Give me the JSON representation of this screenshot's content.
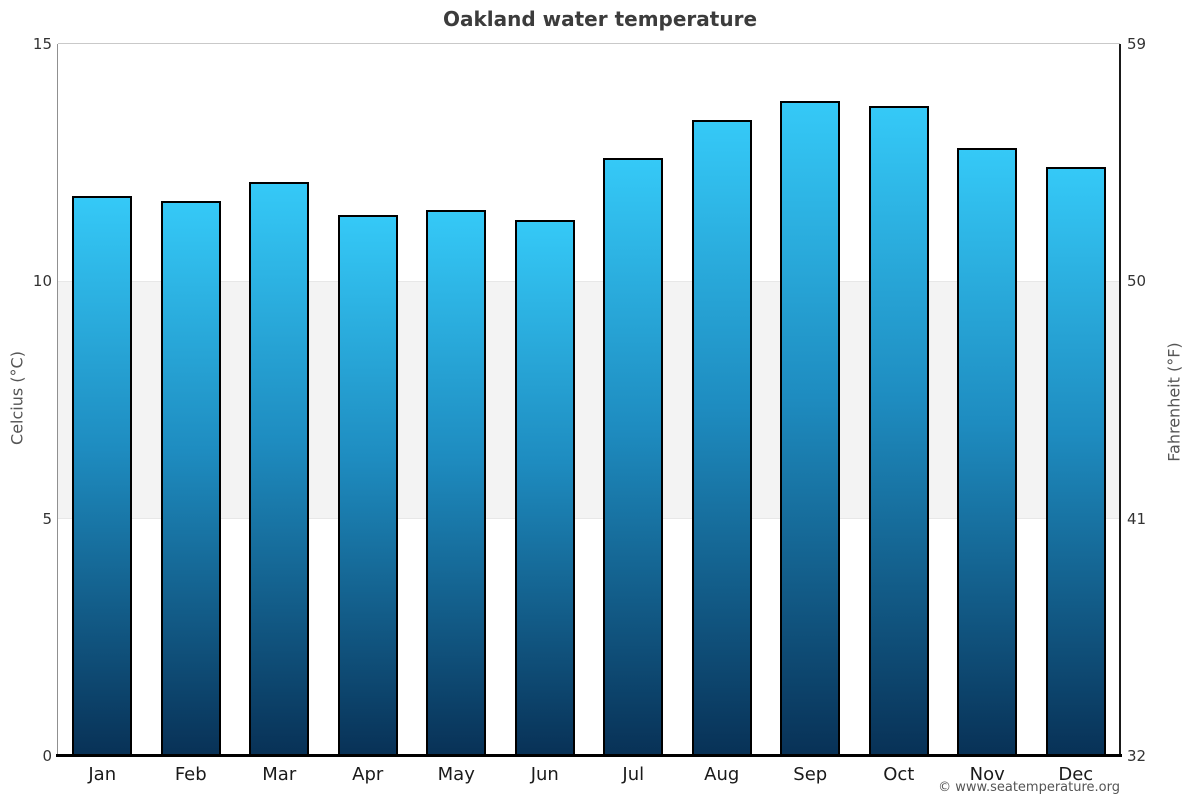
{
  "title": "Oakland water temperature",
  "footer": "© www.seatemperature.org",
  "chart_data": {
    "type": "bar",
    "title": "Oakland water temperature",
    "categories": [
      "Jan",
      "Feb",
      "Mar",
      "Apr",
      "May",
      "Jun",
      "Jul",
      "Aug",
      "Sep",
      "Oct",
      "Nov",
      "Dec"
    ],
    "values": [
      11.8,
      11.7,
      12.1,
      11.4,
      11.5,
      11.3,
      12.6,
      13.4,
      13.8,
      13.7,
      12.8,
      12.4
    ],
    "unit": "°C",
    "ylabel_left": "Celcius (°C)",
    "ylabel_right": "Fahrenheit (°F)",
    "ylim": [
      0,
      15
    ],
    "yticks": [
      {
        "celsius": "15",
        "fahrenheit": "59"
      },
      {
        "celsius": "10",
        "fahrenheit": "50"
      },
      {
        "celsius": "5",
        "fahrenheit": "41"
      },
      {
        "celsius": "0",
        "fahrenheit": "32"
      }
    ],
    "shaded_band_celsius": [
      5,
      10
    ],
    "legend": "none",
    "grid": "shaded horizontal band between 5 and 10 °C",
    "colors": {
      "bar_gradient_top": "#35c9f7",
      "bar_gradient_mid": "#1e8cc0",
      "bar_gradient_bottom": "#083156",
      "bar_border": "#000000",
      "band": "#f3f3f3",
      "axis_bottom": "#000000",
      "axis_left": "#909090",
      "axis_right": "#1a1a1a",
      "plot_top_border": "#c9c9c9",
      "title_text": "#3c3c3c",
      "tick_text": "#333333",
      "footer_text": "#555555"
    }
  }
}
